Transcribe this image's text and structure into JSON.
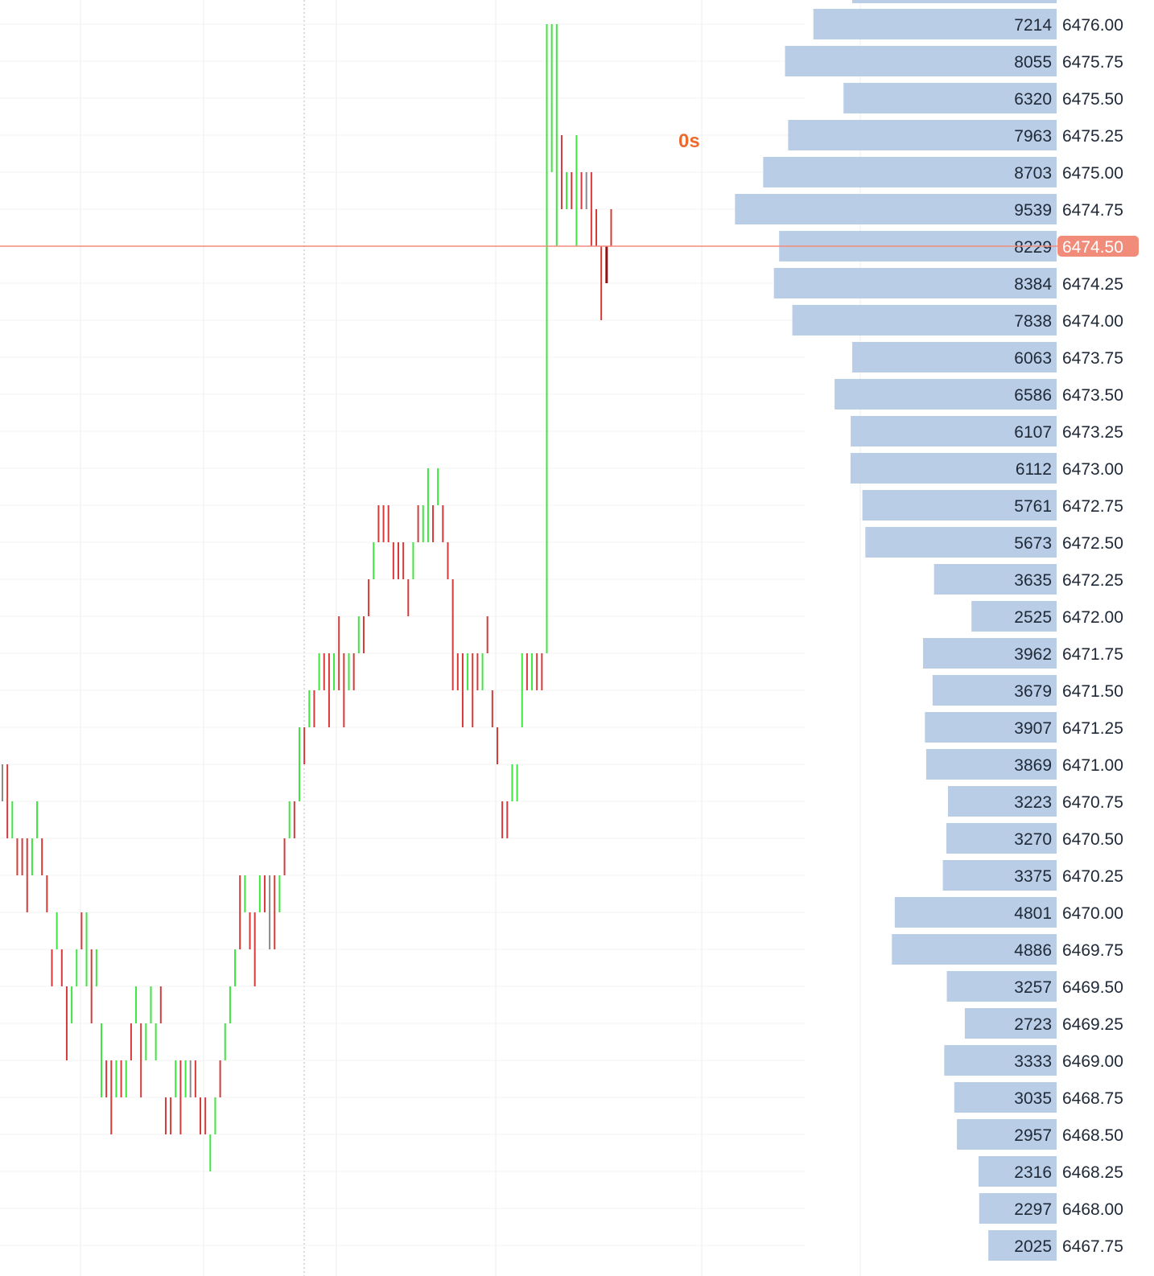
{
  "timer_label": "0s",
  "colors": {
    "up": "#3ee63e",
    "down": "#d63a3a",
    "down_dark": "#8b1414",
    "neutral": "#8a8a8a",
    "volume_bar": "#b9cde6",
    "current_price": "#f28c7a",
    "timer": "#ec6a2e",
    "grid": "#eeeeee"
  },
  "chart_data": {
    "type": "bar",
    "description_type": "tick price chart with volume-by-price profile",
    "price_scale": {
      "top": 6476.0,
      "bottom": 6467.75,
      "step": 0.25
    },
    "current_price": {
      "value": 6474.5,
      "label": "6474.50",
      "volume_label": "8229"
    },
    "volume_profile": [
      {
        "price": "6476.00",
        "volume": 7214
      },
      {
        "price": "6475.75",
        "volume": 8055
      },
      {
        "price": "6475.50",
        "volume": 6320
      },
      {
        "price": "6475.25",
        "volume": 7963
      },
      {
        "price": "6475.00",
        "volume": 8703
      },
      {
        "price": "6474.75",
        "volume": 9539
      },
      {
        "price": "6474.50",
        "volume": 8229
      },
      {
        "price": "6474.25",
        "volume": 8384
      },
      {
        "price": "6474.00",
        "volume": 7838
      },
      {
        "price": "6473.75",
        "volume": 6063
      },
      {
        "price": "6473.50",
        "volume": 6586
      },
      {
        "price": "6473.25",
        "volume": 6107
      },
      {
        "price": "6473.00",
        "volume": 6112
      },
      {
        "price": "6472.75",
        "volume": 5761
      },
      {
        "price": "6472.50",
        "volume": 5673
      },
      {
        "price": "6472.25",
        "volume": 3635
      },
      {
        "price": "6472.00",
        "volume": 2525
      },
      {
        "price": "6471.75",
        "volume": 3962
      },
      {
        "price": "6471.50",
        "volume": 3679
      },
      {
        "price": "6471.25",
        "volume": 3907
      },
      {
        "price": "6471.00",
        "volume": 3869
      },
      {
        "price": "6470.75",
        "volume": 3223
      },
      {
        "price": "6470.50",
        "volume": 3270
      },
      {
        "price": "6470.25",
        "volume": 3375
      },
      {
        "price": "6470.00",
        "volume": 4801
      },
      {
        "price": "6469.75",
        "volume": 4886
      },
      {
        "price": "6469.50",
        "volume": 3257
      },
      {
        "price": "6469.25",
        "volume": 2723
      },
      {
        "price": "6469.00",
        "volume": 3333
      },
      {
        "price": "6468.75",
        "volume": 3035
      },
      {
        "price": "6468.50",
        "volume": 2957
      },
      {
        "price": "6468.25",
        "volume": 2316
      },
      {
        "price": "6468.00",
        "volume": 2297
      },
      {
        "price": "6467.75",
        "volume": 2025
      }
    ],
    "ticks": [
      {
        "high": 6471.0,
        "low": 6470.75,
        "dir": "neutral"
      },
      {
        "high": 6471.0,
        "low": 6470.5,
        "dir": "down"
      },
      {
        "high": 6470.75,
        "low": 6470.5,
        "dir": "up"
      },
      {
        "high": 6470.5,
        "low": 6470.25,
        "dir": "down"
      },
      {
        "high": 6470.5,
        "low": 6470.25,
        "dir": "down"
      },
      {
        "high": 6470.5,
        "low": 6470.0,
        "dir": "down"
      },
      {
        "high": 6470.5,
        "low": 6470.25,
        "dir": "up"
      },
      {
        "high": 6470.75,
        "low": 6470.5,
        "dir": "up"
      },
      {
        "high": 6470.5,
        "low": 6470.25,
        "dir": "down"
      },
      {
        "high": 6470.25,
        "low": 6470.0,
        "dir": "down"
      },
      {
        "high": 6469.75,
        "low": 6469.5,
        "dir": "down"
      },
      {
        "high": 6470.0,
        "low": 6469.75,
        "dir": "up"
      },
      {
        "high": 6469.75,
        "low": 6469.5,
        "dir": "down"
      },
      {
        "high": 6469.5,
        "low": 6469.0,
        "dir": "down"
      },
      {
        "high": 6469.5,
        "low": 6469.25,
        "dir": "up"
      },
      {
        "high": 6469.75,
        "low": 6469.5,
        "dir": "up"
      },
      {
        "high": 6470.0,
        "low": 6469.75,
        "dir": "down"
      },
      {
        "high": 6470.0,
        "low": 6469.5,
        "dir": "up"
      },
      {
        "high": 6469.75,
        "low": 6469.25,
        "dir": "down"
      },
      {
        "high": 6469.75,
        "low": 6469.5,
        "dir": "up"
      },
      {
        "high": 6469.25,
        "low": 6468.75,
        "dir": "up"
      },
      {
        "high": 6469.0,
        "low": 6468.75,
        "dir": "down"
      },
      {
        "high": 6469.0,
        "low": 6468.5,
        "dir": "down"
      },
      {
        "high": 6469.0,
        "low": 6468.75,
        "dir": "up"
      },
      {
        "high": 6469.0,
        "low": 6468.75,
        "dir": "down"
      },
      {
        "high": 6469.0,
        "low": 6468.75,
        "dir": "up"
      },
      {
        "high": 6469.25,
        "low": 6469.0,
        "dir": "down"
      },
      {
        "high": 6469.5,
        "low": 6469.25,
        "dir": "up"
      },
      {
        "high": 6469.25,
        "low": 6468.75,
        "dir": "down"
      },
      {
        "high": 6469.25,
        "low": 6469.0,
        "dir": "up"
      },
      {
        "high": 6469.5,
        "low": 6469.25,
        "dir": "up"
      },
      {
        "high": 6469.25,
        "low": 6469.0,
        "dir": "up"
      },
      {
        "high": 6469.5,
        "low": 6469.25,
        "dir": "down"
      },
      {
        "high": 6468.75,
        "low": 6468.5,
        "dir": "down"
      },
      {
        "high": 6468.75,
        "low": 6468.5,
        "dir": "down"
      },
      {
        "high": 6469.0,
        "low": 6468.75,
        "dir": "up"
      },
      {
        "high": 6469.0,
        "low": 6468.5,
        "dir": "down"
      },
      {
        "high": 6469.0,
        "low": 6468.75,
        "dir": "up"
      },
      {
        "high": 6469.0,
        "low": 6468.75,
        "dir": "neutral"
      },
      {
        "high": 6469.0,
        "low": 6468.75,
        "dir": "down"
      },
      {
        "high": 6468.75,
        "low": 6468.5,
        "dir": "down"
      },
      {
        "high": 6468.75,
        "low": 6468.5,
        "dir": "down"
      },
      {
        "high": 6468.5,
        "low": 6468.25,
        "dir": "up"
      },
      {
        "high": 6468.75,
        "low": 6468.5,
        "dir": "up"
      },
      {
        "high": 6469.0,
        "low": 6468.75,
        "dir": "down"
      },
      {
        "high": 6469.25,
        "low": 6469.0,
        "dir": "up"
      },
      {
        "high": 6469.5,
        "low": 6469.25,
        "dir": "up"
      },
      {
        "high": 6469.75,
        "low": 6469.5,
        "dir": "up"
      },
      {
        "high": 6470.25,
        "low": 6469.75,
        "dir": "down"
      },
      {
        "high": 6470.25,
        "low": 6470.0,
        "dir": "up"
      },
      {
        "high": 6470.0,
        "low": 6469.75,
        "dir": "down"
      },
      {
        "high": 6470.0,
        "low": 6469.5,
        "dir": "down"
      },
      {
        "high": 6470.25,
        "low": 6470.0,
        "dir": "up"
      },
      {
        "high": 6470.25,
        "low": 6470.0,
        "dir": "down"
      },
      {
        "high": 6470.25,
        "low": 6469.75,
        "dir": "neutral"
      },
      {
        "high": 6470.25,
        "low": 6469.75,
        "dir": "down"
      },
      {
        "high": 6470.25,
        "low": 6470.0,
        "dir": "up"
      },
      {
        "high": 6470.5,
        "low": 6470.25,
        "dir": "down"
      },
      {
        "high": 6470.75,
        "low": 6470.5,
        "dir": "up"
      },
      {
        "high": 6470.75,
        "low": 6470.5,
        "dir": "down"
      },
      {
        "high": 6471.25,
        "low": 6470.75,
        "dir": "up"
      },
      {
        "high": 6471.25,
        "low": 6471.0,
        "dir": "down"
      },
      {
        "high": 6471.5,
        "low": 6471.25,
        "dir": "up"
      },
      {
        "high": 6471.5,
        "low": 6471.25,
        "dir": "down"
      },
      {
        "high": 6471.75,
        "low": 6471.5,
        "dir": "up"
      },
      {
        "high": 6471.75,
        "low": 6471.5,
        "dir": "down"
      },
      {
        "high": 6471.75,
        "low": 6471.25,
        "dir": "down"
      },
      {
        "high": 6471.75,
        "low": 6471.5,
        "dir": "up"
      },
      {
        "high": 6472.0,
        "low": 6471.5,
        "dir": "down"
      },
      {
        "high": 6471.75,
        "low": 6471.25,
        "dir": "down"
      },
      {
        "high": 6471.75,
        "low": 6471.5,
        "dir": "up"
      },
      {
        "high": 6471.75,
        "low": 6471.5,
        "dir": "down"
      },
      {
        "high": 6472.0,
        "low": 6471.75,
        "dir": "up"
      },
      {
        "high": 6472.0,
        "low": 6471.75,
        "dir": "down"
      },
      {
        "high": 6472.25,
        "low": 6472.0,
        "dir": "down"
      },
      {
        "high": 6472.5,
        "low": 6472.25,
        "dir": "up"
      },
      {
        "high": 6472.75,
        "low": 6472.5,
        "dir": "down"
      },
      {
        "high": 6472.75,
        "low": 6472.5,
        "dir": "down"
      },
      {
        "high": 6472.75,
        "low": 6472.5,
        "dir": "down"
      },
      {
        "high": 6472.5,
        "low": 6472.25,
        "dir": "down"
      },
      {
        "high": 6472.5,
        "low": 6472.25,
        "dir": "down"
      },
      {
        "high": 6472.5,
        "low": 6472.25,
        "dir": "down"
      },
      {
        "high": 6472.25,
        "low": 6472.0,
        "dir": "down"
      },
      {
        "high": 6472.5,
        "low": 6472.25,
        "dir": "up"
      },
      {
        "high": 6472.75,
        "low": 6472.5,
        "dir": "down"
      },
      {
        "high": 6472.75,
        "low": 6472.5,
        "dir": "up"
      },
      {
        "high": 6473.0,
        "low": 6472.5,
        "dir": "up"
      },
      {
        "high": 6472.75,
        "low": 6472.5,
        "dir": "down"
      },
      {
        "high": 6473.0,
        "low": 6472.75,
        "dir": "up"
      },
      {
        "high": 6472.75,
        "low": 6472.5,
        "dir": "down"
      },
      {
        "high": 6472.5,
        "low": 6472.25,
        "dir": "down"
      },
      {
        "high": 6472.25,
        "low": 6471.5,
        "dir": "down"
      },
      {
        "high": 6471.75,
        "low": 6471.5,
        "dir": "down"
      },
      {
        "high": 6471.75,
        "low": 6471.25,
        "dir": "down"
      },
      {
        "high": 6471.75,
        "low": 6471.5,
        "dir": "up"
      },
      {
        "high": 6471.75,
        "low": 6471.25,
        "dir": "down"
      },
      {
        "high": 6471.75,
        "low": 6471.5,
        "dir": "down"
      },
      {
        "high": 6471.75,
        "low": 6471.5,
        "dir": "up"
      },
      {
        "high": 6472.0,
        "low": 6471.75,
        "dir": "down"
      },
      {
        "high": 6471.5,
        "low": 6471.25,
        "dir": "down"
      },
      {
        "high": 6471.25,
        "low": 6471.0,
        "dir": "down"
      },
      {
        "high": 6470.75,
        "low": 6470.5,
        "dir": "down"
      },
      {
        "high": 6470.75,
        "low": 6470.5,
        "dir": "down"
      },
      {
        "high": 6471.0,
        "low": 6470.75,
        "dir": "up"
      },
      {
        "high": 6471.0,
        "low": 6470.75,
        "dir": "up"
      },
      {
        "high": 6471.75,
        "low": 6471.25,
        "dir": "up"
      },
      {
        "high": 6471.75,
        "low": 6471.5,
        "dir": "down"
      },
      {
        "high": 6471.75,
        "low": 6471.5,
        "dir": "up"
      },
      {
        "high": 6471.75,
        "low": 6471.5,
        "dir": "down"
      },
      {
        "high": 6471.75,
        "low": 6471.5,
        "dir": "down"
      },
      {
        "high": 6476.0,
        "low": 6471.75,
        "dir": "up"
      },
      {
        "high": 6476.0,
        "low": 6475.0,
        "dir": "up"
      },
      {
        "high": 6476.0,
        "low": 6474.5,
        "dir": "up"
      },
      {
        "high": 6475.25,
        "low": 6474.75,
        "dir": "down"
      },
      {
        "high": 6475.0,
        "low": 6474.75,
        "dir": "up"
      },
      {
        "high": 6475.0,
        "low": 6474.75,
        "dir": "down"
      },
      {
        "high": 6475.25,
        "low": 6474.5,
        "dir": "up"
      },
      {
        "high": 6475.0,
        "low": 6474.75,
        "dir": "down"
      },
      {
        "high": 6475.0,
        "low": 6474.75,
        "dir": "neutral"
      },
      {
        "high": 6475.0,
        "low": 6474.5,
        "dir": "down"
      },
      {
        "high": 6474.75,
        "low": 6474.5,
        "dir": "down"
      },
      {
        "high": 6474.5,
        "low": 6474.0,
        "dir": "down"
      },
      {
        "high": 6474.5,
        "low": 6474.25,
        "dir": "down_dark"
      },
      {
        "high": 6474.75,
        "low": 6474.5,
        "dir": "down"
      }
    ]
  }
}
